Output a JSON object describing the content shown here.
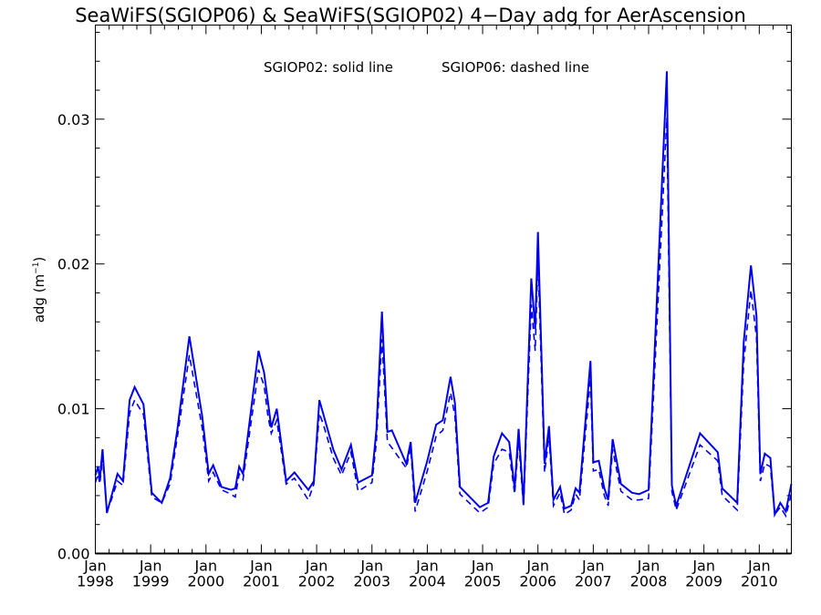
{
  "chart_data": {
    "type": "line",
    "title": "SeaWiFS(SGIOP06) & SeaWiFS(SGIOP02) 4−Day adg for AerAscension",
    "annotation_left": "SGIOP02: solid line",
    "annotation_right": "SGIOP06: dashed line",
    "ylabel_main": "adg (m",
    "ylabel_sup": "−1",
    "ylabel_close": ")",
    "ylim": [
      0.0,
      0.0365
    ],
    "xlim": [
      1998.0,
      2010.58
    ],
    "y_ticks": [
      {
        "value": 0.0,
        "label": "0.00"
      },
      {
        "value": 0.01,
        "label": "0.01"
      },
      {
        "value": 0.02,
        "label": "0.02"
      },
      {
        "value": 0.03,
        "label": "0.03"
      }
    ],
    "y_minor_step": 0.002,
    "x_ticks": [
      {
        "value": 1998,
        "month": "Jan",
        "year": "1998"
      },
      {
        "value": 1999,
        "month": "Jan",
        "year": "1999"
      },
      {
        "value": 2000,
        "month": "Jan",
        "year": "2000"
      },
      {
        "value": 2001,
        "month": "Jan",
        "year": "2001"
      },
      {
        "value": 2002,
        "month": "Jan",
        "year": "2002"
      },
      {
        "value": 2003,
        "month": "Jan",
        "year": "2003"
      },
      {
        "value": 2004,
        "month": "Jan",
        "year": "2004"
      },
      {
        "value": 2005,
        "month": "Jan",
        "year": "2005"
      },
      {
        "value": 2006,
        "month": "Jan",
        "year": "2006"
      },
      {
        "value": 2007,
        "month": "Jan",
        "year": "2007"
      },
      {
        "value": 2008,
        "month": "Jan",
        "year": "2008"
      },
      {
        "value": 2009,
        "month": "Jan",
        "year": "2009"
      },
      {
        "value": 2010,
        "month": "Jan",
        "year": "2010"
      }
    ],
    "x_minor_step": 0.25,
    "series_color": "#0000ee",
    "series": [
      {
        "style": "solid",
        "x": [
          1998.0,
          1998.05,
          1998.08,
          1998.13,
          1998.21,
          1998.28,
          1998.4,
          1998.5,
          1998.62,
          1998.71,
          1998.87,
          1999.02,
          1999.2,
          1999.35,
          1999.48,
          1999.7,
          1999.93,
          2000.05,
          2000.13,
          2000.28,
          2000.45,
          2000.53,
          2000.6,
          2000.67,
          2000.95,
          2001.05,
          2001.12,
          2001.18,
          2001.28,
          2001.45,
          2001.6,
          2001.85,
          2001.95,
          2002.05,
          2002.13,
          2002.3,
          2002.45,
          2002.62,
          2002.75,
          2003.0,
          2003.08,
          2003.18,
          2003.28,
          2003.36,
          2003.62,
          2003.7,
          2003.78,
          2004.0,
          2004.16,
          2004.28,
          2004.42,
          2004.5,
          2004.59,
          2004.95,
          2005.1,
          2005.2,
          2005.35,
          2005.48,
          2005.58,
          2005.65,
          2005.74,
          2005.88,
          2005.95,
          2006.0,
          2006.12,
          2006.2,
          2006.28,
          2006.4,
          2006.48,
          2006.6,
          2006.68,
          2006.75,
          2006.95,
          2007.0,
          2007.1,
          2007.2,
          2007.27,
          2007.35,
          2007.5,
          2007.7,
          2007.83,
          2008.0,
          2008.33,
          2008.42,
          2008.5,
          2008.93,
          2009.25,
          2009.33,
          2009.6,
          2009.72,
          2009.85,
          2009.95,
          2010.02,
          2010.1,
          2010.2,
          2010.28,
          2010.38,
          2010.48,
          2010.58
        ],
        "y": [
          0.0054,
          0.006,
          0.0051,
          0.0072,
          0.0028,
          0.0038,
          0.0055,
          0.005,
          0.0106,
          0.0115,
          0.0103,
          0.0042,
          0.0035,
          0.0052,
          0.0085,
          0.015,
          0.0095,
          0.0055,
          0.0061,
          0.0046,
          0.0044,
          0.0045,
          0.006,
          0.0055,
          0.014,
          0.0125,
          0.0105,
          0.0087,
          0.01,
          0.005,
          0.0056,
          0.0044,
          0.005,
          0.0106,
          0.0095,
          0.0072,
          0.0058,
          0.0075,
          0.0049,
          0.0054,
          0.0085,
          0.0167,
          0.0084,
          0.0085,
          0.0062,
          0.0077,
          0.0035,
          0.0064,
          0.0089,
          0.0092,
          0.0122,
          0.0104,
          0.0046,
          0.0032,
          0.0035,
          0.0067,
          0.0083,
          0.0077,
          0.0045,
          0.0086,
          0.0035,
          0.019,
          0.0155,
          0.0222,
          0.0062,
          0.0088,
          0.0037,
          0.0046,
          0.0031,
          0.0033,
          0.0045,
          0.0042,
          0.0133,
          0.0063,
          0.0064,
          0.0045,
          0.0037,
          0.0079,
          0.0048,
          0.0042,
          0.0041,
          0.0044,
          0.0333,
          0.0047,
          0.0033,
          0.0083,
          0.007,
          0.0045,
          0.0035,
          0.0146,
          0.0199,
          0.0164,
          0.0055,
          0.0069,
          0.0066,
          0.0027,
          0.0035,
          0.0029,
          0.0048
        ]
      },
      {
        "style": "dashed",
        "x": [
          1998.0,
          1998.05,
          1998.08,
          1998.13,
          1998.21,
          1998.28,
          1998.4,
          1998.5,
          1998.62,
          1998.71,
          1998.87,
          1999.02,
          1999.2,
          1999.35,
          1999.48,
          1999.7,
          1999.93,
          2000.05,
          2000.13,
          2000.28,
          2000.45,
          2000.53,
          2000.6,
          2000.67,
          2000.95,
          2001.05,
          2001.12,
          2001.18,
          2001.28,
          2001.45,
          2001.6,
          2001.85,
          2001.95,
          2002.05,
          2002.13,
          2002.3,
          2002.45,
          2002.62,
          2002.75,
          2003.0,
          2003.08,
          2003.18,
          2003.28,
          2003.36,
          2003.62,
          2003.7,
          2003.78,
          2004.0,
          2004.16,
          2004.28,
          2004.42,
          2004.5,
          2004.59,
          2004.95,
          2005.1,
          2005.2,
          2005.35,
          2005.48,
          2005.58,
          2005.65,
          2005.74,
          2005.88,
          2005.95,
          2006.0,
          2006.12,
          2006.2,
          2006.28,
          2006.4,
          2006.48,
          2006.6,
          2006.68,
          2006.75,
          2006.95,
          2007.0,
          2007.1,
          2007.2,
          2007.27,
          2007.35,
          2007.5,
          2007.7,
          2007.83,
          2008.0,
          2008.33,
          2008.42,
          2008.5,
          2008.93,
          2009.25,
          2009.33,
          2009.6,
          2009.72,
          2009.85,
          2009.95,
          2010.02,
          2010.1,
          2010.2,
          2010.28,
          2010.38,
          2010.48,
          2010.58
        ],
        "y": [
          0.0049,
          0.0055,
          0.0048,
          0.0066,
          0.0029,
          0.0036,
          0.005,
          0.0047,
          0.0097,
          0.0106,
          0.0096,
          0.0039,
          0.0035,
          0.0048,
          0.008,
          0.0137,
          0.0087,
          0.005,
          0.0056,
          0.0044,
          0.0041,
          0.0039,
          0.0055,
          0.0051,
          0.0127,
          0.0116,
          0.0095,
          0.0083,
          0.0092,
          0.0048,
          0.0052,
          0.0037,
          0.0048,
          0.0097,
          0.0088,
          0.0066,
          0.0054,
          0.007,
          0.0043,
          0.0049,
          0.0077,
          0.0148,
          0.0077,
          0.0073,
          0.0059,
          0.0073,
          0.0029,
          0.0057,
          0.0081,
          0.0085,
          0.0111,
          0.0095,
          0.0041,
          0.0028,
          0.0032,
          0.0062,
          0.0072,
          0.007,
          0.0041,
          0.0078,
          0.0032,
          0.0172,
          0.014,
          0.0204,
          0.0056,
          0.0081,
          0.0033,
          0.0042,
          0.0027,
          0.003,
          0.0041,
          0.0037,
          0.0121,
          0.0057,
          0.0058,
          0.004,
          0.0033,
          0.0072,
          0.0043,
          0.0037,
          0.0037,
          0.0038,
          0.0301,
          0.0043,
          0.003,
          0.0075,
          0.0064,
          0.004,
          0.003,
          0.0132,
          0.0182,
          0.0149,
          0.005,
          0.0062,
          0.006,
          0.0027,
          0.0032,
          0.0026,
          0.0041
        ]
      }
    ]
  }
}
